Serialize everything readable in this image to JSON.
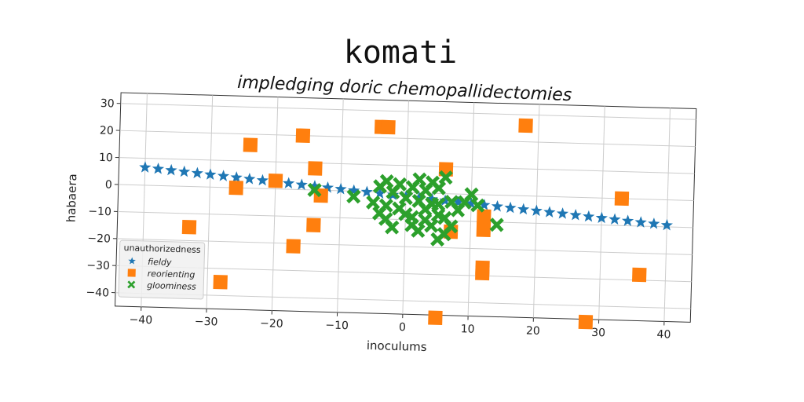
{
  "chart_data": {
    "type": "scatter",
    "title": "komati",
    "subtitle": "impledging doric chemopallidectomies",
    "xlabel": "inoculums",
    "ylabel": "habaera",
    "xlim": [
      -44,
      44
    ],
    "ylim": [
      -45,
      34
    ],
    "xticks": [
      -40,
      -30,
      -20,
      -10,
      0,
      10,
      20,
      30,
      40
    ],
    "yticks": [
      30,
      20,
      10,
      0,
      -10,
      -20,
      -30,
      -40
    ],
    "xtick_labels": [
      "−40",
      "−30",
      "−20",
      "−10",
      "0",
      "10",
      "20",
      "30",
      "40"
    ],
    "ytick_labels": [
      "30",
      "20",
      "10",
      "0",
      "−10",
      "−20",
      "−30",
      "−40"
    ],
    "grid": true,
    "legend": {
      "title": "unauthorizedness",
      "position": "lower-left"
    },
    "series": [
      {
        "name": "fieldy",
        "marker": "star",
        "color": "#1f77b4",
        "x": [
          -40,
          -38,
          -36,
          -34,
          -32,
          -30,
          -28,
          -26,
          -24,
          -22,
          -20,
          -18,
          -16,
          -14,
          -12,
          -10,
          -8,
          -6,
          -4,
          -2,
          0,
          2,
          4,
          6,
          8,
          10,
          12,
          14,
          16,
          18,
          20,
          22,
          24,
          26,
          28,
          30,
          32,
          34,
          36,
          38,
          40
        ],
        "y": [
          6.6,
          6.2,
          5.8,
          5.4,
          5.0,
          4.6,
          4.2,
          3.8,
          3.4,
          3.0,
          2.6,
          2.2,
          1.8,
          1.4,
          1.0,
          0.6,
          0.2,
          -0.2,
          -0.6,
          -1.0,
          -1.4,
          -1.8,
          -2.2,
          -2.6,
          -3.0,
          -3.4,
          -3.8,
          -4.2,
          -4.6,
          -5.0,
          -5.4,
          -5.8,
          -6.2,
          -6.6,
          -7.0,
          -7.4,
          -7.8,
          -8.2,
          -8.6,
          -9.0,
          -9.4
        ]
      },
      {
        "name": "reorienting",
        "marker": "square",
        "color": "#ff7f0e",
        "x": [
          -33,
          -28,
          -26,
          -24,
          -20,
          -17,
          -16,
          -14,
          -14,
          -13,
          -4,
          -3,
          5,
          6,
          7,
          12,
          12,
          12,
          12,
          18,
          28,
          33,
          36
        ],
        "y": [
          -15,
          -35,
          0,
          16,
          3,
          -21,
          20,
          8,
          -13,
          -2,
          24,
          24,
          -46,
          9,
          -14,
          -27,
          -29,
          -13,
          -8,
          26,
          -46,
          0,
          -28
        ]
      },
      {
        "name": "gloominess",
        "marker": "x",
        "color": "#2ca02c",
        "x": [
          -14,
          -8,
          -5,
          -4,
          -4,
          -3,
          -3,
          -3,
          -2,
          -2,
          -1,
          -1,
          0,
          0,
          1,
          1,
          1,
          2,
          2,
          2,
          3,
          3,
          3,
          4,
          4,
          4,
          5,
          5,
          5,
          5,
          6,
          6,
          6,
          7,
          7,
          8,
          9,
          10,
          11,
          14
        ],
        "y": [
          0,
          -2,
          -4,
          2,
          -8,
          4,
          -5,
          -10,
          0,
          -13,
          -6,
          3,
          -2,
          -8,
          2,
          -9,
          -12,
          5,
          -3,
          -14,
          1,
          -6,
          -10,
          -4,
          4,
          -12,
          -8,
          2,
          -17,
          -4,
          6,
          -15,
          -9,
          -3,
          -12,
          -6,
          -3,
          0,
          -4,
          -11
        ]
      }
    ]
  }
}
